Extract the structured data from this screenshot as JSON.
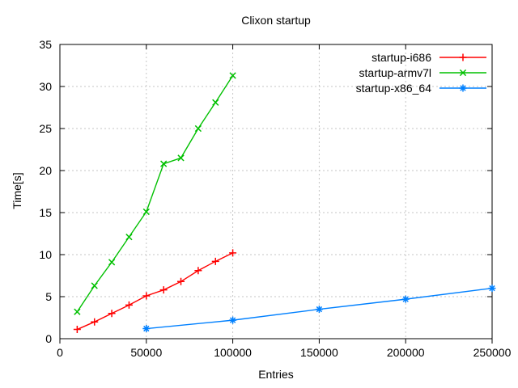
{
  "window": {
    "background": "#ffffff",
    "text_color": "#000000"
  },
  "chart_data": {
    "type": "line",
    "title": "Clixon startup",
    "xlabel": "Entries",
    "ylabel": "Time[s]",
    "xlim": [
      0,
      250000
    ],
    "ylim": [
      0,
      35
    ],
    "xticks": [
      0,
      50000,
      100000,
      150000,
      200000,
      250000
    ],
    "yticks": [
      0,
      5,
      10,
      15,
      20,
      25,
      30,
      35
    ],
    "grid": true,
    "grid_color": "#c5c5c5",
    "border_color": "#000000",
    "legend_position": "top-right-inside",
    "series": [
      {
        "name": "startup-i686",
        "color": "#ff0000",
        "marker": "plus",
        "x": [
          10000,
          20000,
          30000,
          40000,
          50000,
          60000,
          70000,
          80000,
          90000,
          100000
        ],
        "y": [
          1.1,
          2.0,
          3.0,
          4.0,
          5.1,
          5.8,
          6.8,
          8.1,
          9.2,
          10.2
        ]
      },
      {
        "name": "startup-armv7l",
        "color": "#00c000",
        "marker": "cross",
        "x": [
          10000,
          20000,
          30000,
          40000,
          50000,
          60000,
          70000,
          80000,
          90000,
          100000
        ],
        "y": [
          3.2,
          6.3,
          9.1,
          12.1,
          15.1,
          20.8,
          21.5,
          25.0,
          28.1,
          31.3
        ]
      },
      {
        "name": "startup-x86_64",
        "color": "#0080ff",
        "marker": "asterisk",
        "x": [
          50000,
          100000,
          150000,
          200000,
          250000
        ],
        "y": [
          1.2,
          2.2,
          3.5,
          4.7,
          6.0
        ]
      }
    ]
  }
}
